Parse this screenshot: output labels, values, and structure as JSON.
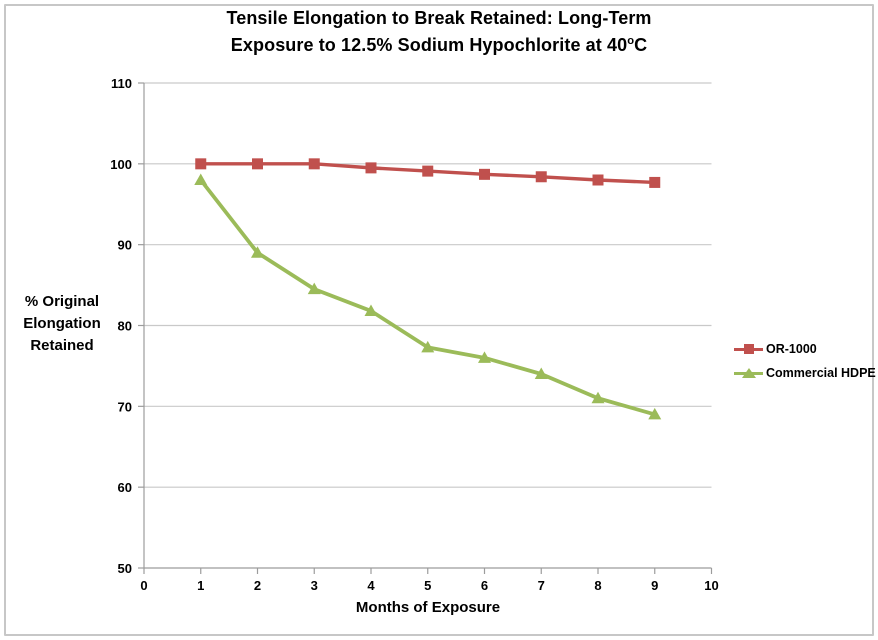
{
  "colors": {
    "series_red": "#C0504D",
    "series_green": "#9BBB59",
    "gridline": "#C9C9C9",
    "axis": "#9C9C9C",
    "text": "#000000",
    "border": "#C7C7C7"
  },
  "title_parts": {
    "line1": "Tensile Elongation to Break Retained: Long-Term",
    "line2_pre": "Exposure to 12.5% Sodium Hypochlorite at 40",
    "line2_sup": "o",
    "line2_post": "C"
  },
  "chart_data": {
    "type": "line",
    "title": "Tensile Elongation to Break Retained: Long-Term Exposure to 12.5% Sodium Hypochlorite at 40°C",
    "xlabel": "Months of Exposure",
    "ylabel": "% Original\nElongation\nRetained",
    "x": [
      1,
      2,
      3,
      4,
      5,
      6,
      7,
      8,
      9
    ],
    "series": [
      {
        "name": "OR-1000",
        "color": "#C0504D",
        "marker": "square",
        "values": [
          100,
          100,
          100,
          99.5,
          99.1,
          98.7,
          98.4,
          98.0,
          97.7
        ]
      },
      {
        "name": "Commercial HDPE",
        "color": "#9BBB59",
        "marker": "triangle",
        "values": [
          98,
          89,
          84.5,
          81.8,
          77.3,
          76,
          74,
          71,
          69
        ]
      }
    ],
    "xlim": [
      0,
      10
    ],
    "ylim": [
      50,
      110
    ],
    "xticks": [
      0,
      1,
      2,
      3,
      4,
      5,
      6,
      7,
      8,
      9,
      10
    ],
    "yticks": [
      50,
      60,
      70,
      80,
      90,
      100,
      110
    ],
    "grid": "horizontal-only",
    "legend_position": "right"
  }
}
